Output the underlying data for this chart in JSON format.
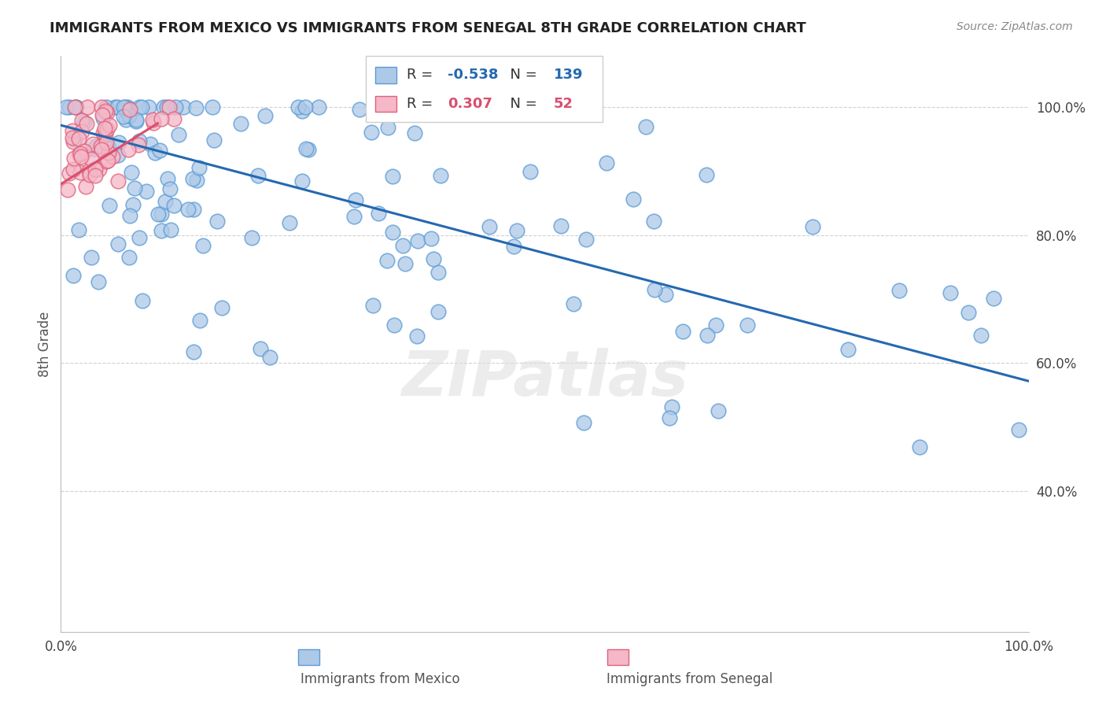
{
  "title": "IMMIGRANTS FROM MEXICO VS IMMIGRANTS FROM SENEGAL 8TH GRADE CORRELATION CHART",
  "source_text": "Source: ZipAtlas.com",
  "ylabel": "8th Grade",
  "legend_labels": [
    "Immigrants from Mexico",
    "Immigrants from Senegal"
  ],
  "blue_R": -0.538,
  "blue_N": 139,
  "pink_R": 0.307,
  "pink_N": 52,
  "blue_color": "#adc9e8",
  "blue_edge": "#5b9bd5",
  "blue_line_color": "#2469b0",
  "pink_color": "#f4b8c8",
  "pink_edge": "#e0607a",
  "pink_line_color": "#d94f6e",
  "background_color": "#ffffff",
  "grid_color": "#cccccc",
  "watermark": "ZIPatlas",
  "xlim": [
    0.0,
    1.0
  ],
  "ylim": [
    0.18,
    1.08
  ],
  "blue_line_x0": 0.0,
  "blue_line_y0": 0.972,
  "blue_line_x1": 1.0,
  "blue_line_y1": 0.572,
  "pink_line_x0": 0.0,
  "pink_line_y0": 0.88,
  "pink_line_x1": 0.1,
  "pink_line_y1": 0.975
}
